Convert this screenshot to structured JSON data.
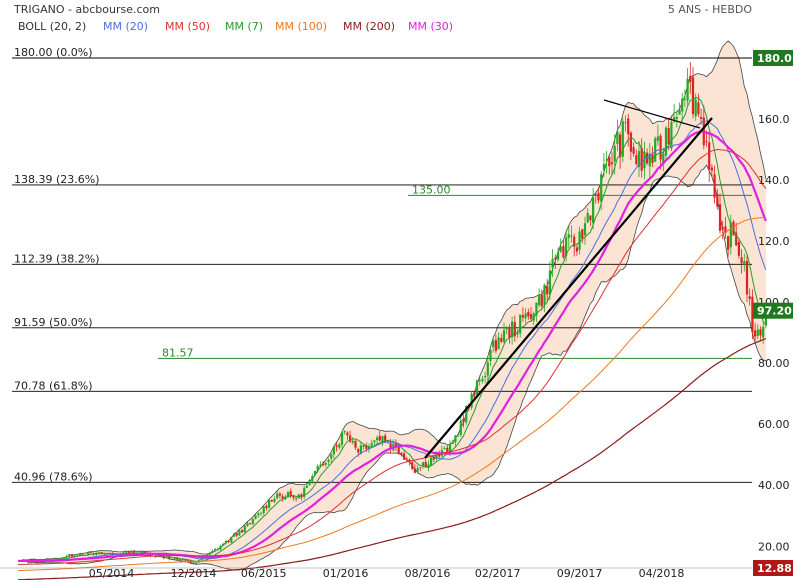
{
  "header": {
    "title": "TRIGANO - abcbourse.com",
    "period": "5 ANS - HEBDO"
  },
  "legend": [
    {
      "label": "BOLL (20, 2)",
      "color": "#333333"
    },
    {
      "label": "MM (20)",
      "color": "#4a6fe0"
    },
    {
      "label": "MM (50)",
      "color": "#e03030"
    },
    {
      "label": "MM (7)",
      "color": "#2a9a2a"
    },
    {
      "label": "MM (100)",
      "color": "#f07820"
    },
    {
      "label": "MM (200)",
      "color": "#8b1a1a"
    },
    {
      "label": "MM (30)",
      "color": "#e020e0"
    }
  ],
  "colors": {
    "up_candle": "#22aa22",
    "down_candle": "#dd2222",
    "bollinger_fill": "#fbe4d4",
    "price_badge": "#1f7a1f",
    "top_badge": "#1f7a1f",
    "bottom_badge": "#b01818",
    "grid_line": "#000000",
    "support_line": "#2a8a2a"
  },
  "chart_data": {
    "type": "line",
    "title": "TRIGANO",
    "ylim": [
      12.88,
      180.0
    ],
    "y_ticks": [
      "20.00",
      "40.00",
      "60.00",
      "80.00",
      "100.0",
      "120.0",
      "140.0",
      "160.0"
    ],
    "x_ticks": [
      "05/2014",
      "12/2014",
      "06/2015",
      "01/2016",
      "08/2016",
      "02/2017",
      "09/2017",
      "04/2018"
    ],
    "last_price_label": "97.20",
    "last_price": 97.2,
    "top_label": "180.0",
    "bottom_label": "12.88",
    "fibonacci_levels": [
      {
        "label": "180.00  (0.0%)",
        "value": 180.0
      },
      {
        "label": "138.39  (23.6%)",
        "value": 138.39
      },
      {
        "label": "112.39  (38.2%)",
        "value": 112.39
      },
      {
        "label": "91.59  (50.0%)",
        "value": 91.59
      },
      {
        "label": "70.78  (61.8%)",
        "value": 70.78
      },
      {
        "label": "40.96  (78.6%)",
        "value": 40.96
      }
    ],
    "horizontal_lines": [
      {
        "label": "135.00",
        "value": 135.0
      },
      {
        "label": "81.57",
        "value": 81.57
      }
    ],
    "price_anchors": [
      [
        "2013-09",
        15.0
      ],
      [
        "2013-12",
        15.5
      ],
      [
        "2014-02",
        17.5
      ],
      [
        "2014-05",
        17.5
      ],
      [
        "2014-07",
        18.0
      ],
      [
        "2014-09",
        17.0
      ],
      [
        "2014-12",
        14.5
      ],
      [
        "2015-01",
        16.5
      ],
      [
        "2015-03",
        22.0
      ],
      [
        "2015-05",
        28.0
      ],
      [
        "2015-07",
        37.0
      ],
      [
        "2015-09",
        36.0
      ],
      [
        "2015-11",
        47.0
      ],
      [
        "2016-01",
        58.0
      ],
      [
        "2016-02",
        52.0
      ],
      [
        "2016-04",
        56.0
      ],
      [
        "2016-06",
        50.0
      ],
      [
        "2016-07",
        45.0
      ],
      [
        "2016-08",
        48.0
      ],
      [
        "2016-10",
        52.0
      ],
      [
        "2016-11",
        62.0
      ],
      [
        "2016-12",
        70.0
      ],
      [
        "2017-02",
        88.0
      ],
      [
        "2017-04",
        93.0
      ],
      [
        "2017-06",
        103.0
      ],
      [
        "2017-07",
        116.0
      ],
      [
        "2017-09",
        120.0
      ],
      [
        "2017-10",
        132.0
      ],
      [
        "2017-12",
        150.0
      ],
      [
        "2018-01",
        156.0
      ],
      [
        "2018-02",
        145.0
      ],
      [
        "2018-04",
        150.0
      ],
      [
        "2018-06",
        172.0
      ],
      [
        "2018-07",
        165.0
      ],
      [
        "2018-08",
        150.0
      ],
      [
        "2018-09",
        120.0
      ],
      [
        "2018-10",
        122.0
      ],
      [
        "2018-11",
        114.0
      ],
      [
        "2018-12",
        86.0
      ],
      [
        "2019-01",
        97.2
      ]
    ]
  }
}
